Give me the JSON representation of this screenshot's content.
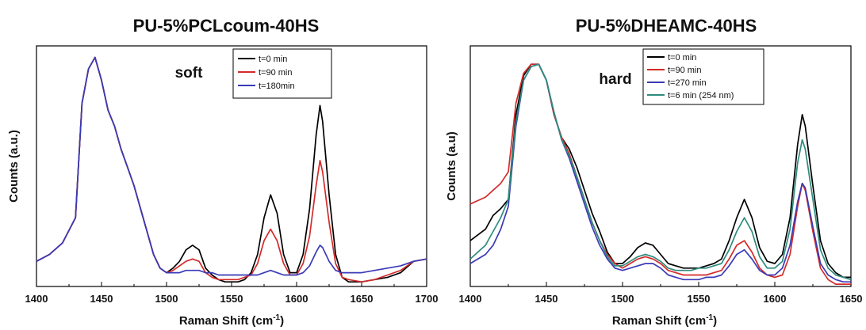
{
  "chart_data": [
    {
      "type": "line",
      "title": "PU-5%PCLcoum-40HS",
      "xlabel": "Raman Shift (cm",
      "xlabel_sup": "-1",
      "xlabel_close": ")",
      "ylabel": "Counts (a.u.)",
      "xlim": [
        1400,
        1700
      ],
      "ylim": [
        0,
        1.05
      ],
      "xticks": [
        1400,
        1450,
        1500,
        1550,
        1600,
        1650,
        1700
      ],
      "yticks_shown": false,
      "annotation": "soft",
      "legend_position": "top-center",
      "series": [
        {
          "name": "t=0 min",
          "color": "#000000",
          "x": [
            1400,
            1410,
            1420,
            1430,
            1435,
            1440,
            1445,
            1450,
            1455,
            1460,
            1465,
            1470,
            1475,
            1480,
            1485,
            1490,
            1495,
            1500,
            1505,
            1510,
            1515,
            1520,
            1525,
            1530,
            1535,
            1540,
            1545,
            1550,
            1555,
            1560,
            1565,
            1570,
            1575,
            1580,
            1585,
            1590,
            1595,
            1600,
            1605,
            1610,
            1615,
            1618,
            1620,
            1625,
            1630,
            1635,
            1640,
            1650,
            1660,
            1670,
            1680,
            1690,
            1700
          ],
          "y": [
            0.11,
            0.14,
            0.19,
            0.3,
            0.8,
            0.95,
            1.0,
            0.9,
            0.77,
            0.7,
            0.6,
            0.52,
            0.44,
            0.34,
            0.24,
            0.14,
            0.08,
            0.06,
            0.08,
            0.11,
            0.16,
            0.18,
            0.16,
            0.08,
            0.05,
            0.03,
            0.02,
            0.02,
            0.02,
            0.03,
            0.06,
            0.14,
            0.3,
            0.4,
            0.32,
            0.14,
            0.06,
            0.06,
            0.14,
            0.34,
            0.66,
            0.79,
            0.72,
            0.4,
            0.14,
            0.04,
            0.02,
            0.02,
            0.03,
            0.04,
            0.06,
            0.11,
            0.12
          ]
        },
        {
          "name": "t=90 min",
          "color": "#d42a2a",
          "x": [
            1400,
            1410,
            1420,
            1430,
            1435,
            1440,
            1445,
            1450,
            1455,
            1460,
            1465,
            1470,
            1475,
            1480,
            1485,
            1490,
            1495,
            1500,
            1505,
            1510,
            1515,
            1520,
            1525,
            1530,
            1535,
            1540,
            1545,
            1550,
            1555,
            1560,
            1565,
            1570,
            1575,
            1580,
            1585,
            1590,
            1595,
            1600,
            1605,
            1610,
            1615,
            1618,
            1620,
            1625,
            1630,
            1635,
            1640,
            1650,
            1660,
            1670,
            1680,
            1690,
            1700
          ],
          "y": [
            0.11,
            0.14,
            0.19,
            0.3,
            0.8,
            0.95,
            1.0,
            0.9,
            0.77,
            0.7,
            0.6,
            0.52,
            0.44,
            0.34,
            0.24,
            0.14,
            0.08,
            0.06,
            0.07,
            0.09,
            0.11,
            0.12,
            0.11,
            0.06,
            0.04,
            0.03,
            0.03,
            0.03,
            0.03,
            0.04,
            0.05,
            0.1,
            0.2,
            0.25,
            0.2,
            0.1,
            0.05,
            0.05,
            0.1,
            0.22,
            0.44,
            0.55,
            0.5,
            0.28,
            0.1,
            0.04,
            0.03,
            0.02,
            0.03,
            0.05,
            0.07,
            0.11,
            0.12
          ]
        },
        {
          "name": "t=180min",
          "color": "#3a3ab8",
          "x": [
            1400,
            1410,
            1420,
            1430,
            1435,
            1440,
            1445,
            1450,
            1455,
            1460,
            1465,
            1470,
            1475,
            1480,
            1485,
            1490,
            1495,
            1500,
            1505,
            1510,
            1515,
            1520,
            1525,
            1530,
            1535,
            1540,
            1545,
            1550,
            1555,
            1560,
            1565,
            1570,
            1575,
            1580,
            1585,
            1590,
            1595,
            1600,
            1605,
            1610,
            1615,
            1618,
            1620,
            1625,
            1630,
            1635,
            1640,
            1650,
            1660,
            1670,
            1680,
            1690,
            1700
          ],
          "y": [
            0.11,
            0.14,
            0.19,
            0.3,
            0.8,
            0.95,
            1.0,
            0.9,
            0.77,
            0.7,
            0.6,
            0.52,
            0.44,
            0.34,
            0.24,
            0.14,
            0.08,
            0.06,
            0.06,
            0.06,
            0.07,
            0.07,
            0.07,
            0.06,
            0.06,
            0.05,
            0.05,
            0.05,
            0.05,
            0.05,
            0.05,
            0.05,
            0.06,
            0.07,
            0.06,
            0.05,
            0.05,
            0.05,
            0.06,
            0.09,
            0.15,
            0.18,
            0.17,
            0.11,
            0.07,
            0.06,
            0.06,
            0.06,
            0.07,
            0.08,
            0.09,
            0.11,
            0.12
          ]
        }
      ]
    },
    {
      "type": "line",
      "title": "PU-5%DHEAMC-40HS",
      "xlabel": "Raman Shift (cm",
      "xlabel_sup": "-1",
      "xlabel_close": ")",
      "ylabel": "Counts (a.u)",
      "xlim": [
        1400,
        1650
      ],
      "ylim": [
        0,
        1.05
      ],
      "xticks": [
        1400,
        1450,
        1500,
        1550,
        1600,
        1650
      ],
      "yticks_shown": false,
      "annotation": "hard",
      "legend_position": "top-left",
      "series": [
        {
          "name": "t=0 min",
          "color": "#000000",
          "x": [
            1400,
            1410,
            1415,
            1420,
            1425,
            1430,
            1435,
            1440,
            1445,
            1450,
            1455,
            1460,
            1465,
            1470,
            1475,
            1480,
            1485,
            1490,
            1495,
            1500,
            1505,
            1510,
            1515,
            1520,
            1525,
            1530,
            1535,
            1540,
            1545,
            1550,
            1555,
            1560,
            1565,
            1570,
            1575,
            1580,
            1585,
            1590,
            1595,
            1600,
            1605,
            1610,
            1615,
            1618,
            1620,
            1625,
            1630,
            1635,
            1640,
            1645,
            1650
          ],
          "y": [
            0.2,
            0.25,
            0.31,
            0.34,
            0.38,
            0.75,
            0.92,
            0.97,
            0.97,
            0.9,
            0.75,
            0.65,
            0.6,
            0.52,
            0.42,
            0.32,
            0.24,
            0.15,
            0.1,
            0.1,
            0.13,
            0.17,
            0.19,
            0.18,
            0.14,
            0.1,
            0.09,
            0.08,
            0.08,
            0.08,
            0.09,
            0.1,
            0.12,
            0.2,
            0.3,
            0.38,
            0.3,
            0.17,
            0.11,
            0.1,
            0.14,
            0.3,
            0.62,
            0.75,
            0.7,
            0.44,
            0.2,
            0.1,
            0.06,
            0.04,
            0.04
          ]
        },
        {
          "name": "t=90 min",
          "color": "#d42a2a",
          "x": [
            1400,
            1410,
            1415,
            1420,
            1425,
            1430,
            1435,
            1440,
            1445,
            1450,
            1455,
            1460,
            1465,
            1470,
            1475,
            1480,
            1485,
            1490,
            1495,
            1500,
            1505,
            1510,
            1515,
            1520,
            1525,
            1530,
            1535,
            1540,
            1545,
            1550,
            1555,
            1560,
            1565,
            1570,
            1575,
            1580,
            1585,
            1590,
            1595,
            1600,
            1605,
            1610,
            1615,
            1618,
            1620,
            1625,
            1630,
            1635,
            1640,
            1645,
            1650
          ],
          "y": [
            0.36,
            0.39,
            0.42,
            0.45,
            0.5,
            0.8,
            0.93,
            0.97,
            0.97,
            0.9,
            0.75,
            0.65,
            0.58,
            0.48,
            0.38,
            0.28,
            0.2,
            0.14,
            0.1,
            0.08,
            0.1,
            0.12,
            0.13,
            0.12,
            0.1,
            0.07,
            0.06,
            0.05,
            0.05,
            0.05,
            0.05,
            0.06,
            0.07,
            0.12,
            0.18,
            0.2,
            0.15,
            0.08,
            0.05,
            0.04,
            0.05,
            0.14,
            0.35,
            0.45,
            0.42,
            0.24,
            0.08,
            0.03,
            0.01,
            0.01,
            0.01
          ]
        },
        {
          "name": "t=270 min",
          "color": "#3a3ab8",
          "x": [
            1400,
            1410,
            1415,
            1420,
            1425,
            1430,
            1435,
            1440,
            1445,
            1450,
            1455,
            1460,
            1465,
            1470,
            1475,
            1480,
            1485,
            1490,
            1495,
            1500,
            1505,
            1510,
            1515,
            1520,
            1525,
            1530,
            1535,
            1540,
            1545,
            1550,
            1555,
            1560,
            1565,
            1570,
            1575,
            1580,
            1585,
            1590,
            1595,
            1600,
            1605,
            1610,
            1615,
            1618,
            1620,
            1625,
            1630,
            1635,
            1640,
            1645,
            1650
          ],
          "y": [
            0.1,
            0.14,
            0.18,
            0.25,
            0.35,
            0.7,
            0.9,
            0.96,
            0.97,
            0.9,
            0.76,
            0.64,
            0.56,
            0.46,
            0.36,
            0.26,
            0.18,
            0.12,
            0.08,
            0.07,
            0.08,
            0.09,
            0.1,
            0.1,
            0.08,
            0.05,
            0.04,
            0.03,
            0.03,
            0.03,
            0.04,
            0.04,
            0.05,
            0.09,
            0.14,
            0.16,
            0.12,
            0.07,
            0.05,
            0.05,
            0.08,
            0.18,
            0.37,
            0.45,
            0.43,
            0.26,
            0.1,
            0.05,
            0.03,
            0.02,
            0.02
          ]
        },
        {
          "name": "t=6 min (254 nm)",
          "color": "#2e8b7e",
          "x": [
            1400,
            1410,
            1415,
            1420,
            1425,
            1430,
            1435,
            1440,
            1445,
            1450,
            1455,
            1460,
            1465,
            1470,
            1475,
            1480,
            1485,
            1490,
            1495,
            1500,
            1505,
            1510,
            1515,
            1520,
            1525,
            1530,
            1535,
            1540,
            1545,
            1550,
            1555,
            1560,
            1565,
            1570,
            1575,
            1580,
            1585,
            1590,
            1595,
            1600,
            1605,
            1610,
            1615,
            1618,
            1620,
            1625,
            1630,
            1635,
            1640,
            1645,
            1650
          ],
          "y": [
            0.12,
            0.18,
            0.24,
            0.3,
            0.38,
            0.72,
            0.9,
            0.96,
            0.97,
            0.9,
            0.76,
            0.64,
            0.57,
            0.48,
            0.38,
            0.28,
            0.2,
            0.13,
            0.09,
            0.09,
            0.11,
            0.13,
            0.14,
            0.13,
            0.11,
            0.08,
            0.07,
            0.07,
            0.07,
            0.08,
            0.08,
            0.09,
            0.1,
            0.16,
            0.24,
            0.3,
            0.24,
            0.13,
            0.08,
            0.08,
            0.11,
            0.25,
            0.54,
            0.64,
            0.6,
            0.38,
            0.16,
            0.08,
            0.05,
            0.04,
            0.03
          ]
        }
      ]
    }
  ]
}
